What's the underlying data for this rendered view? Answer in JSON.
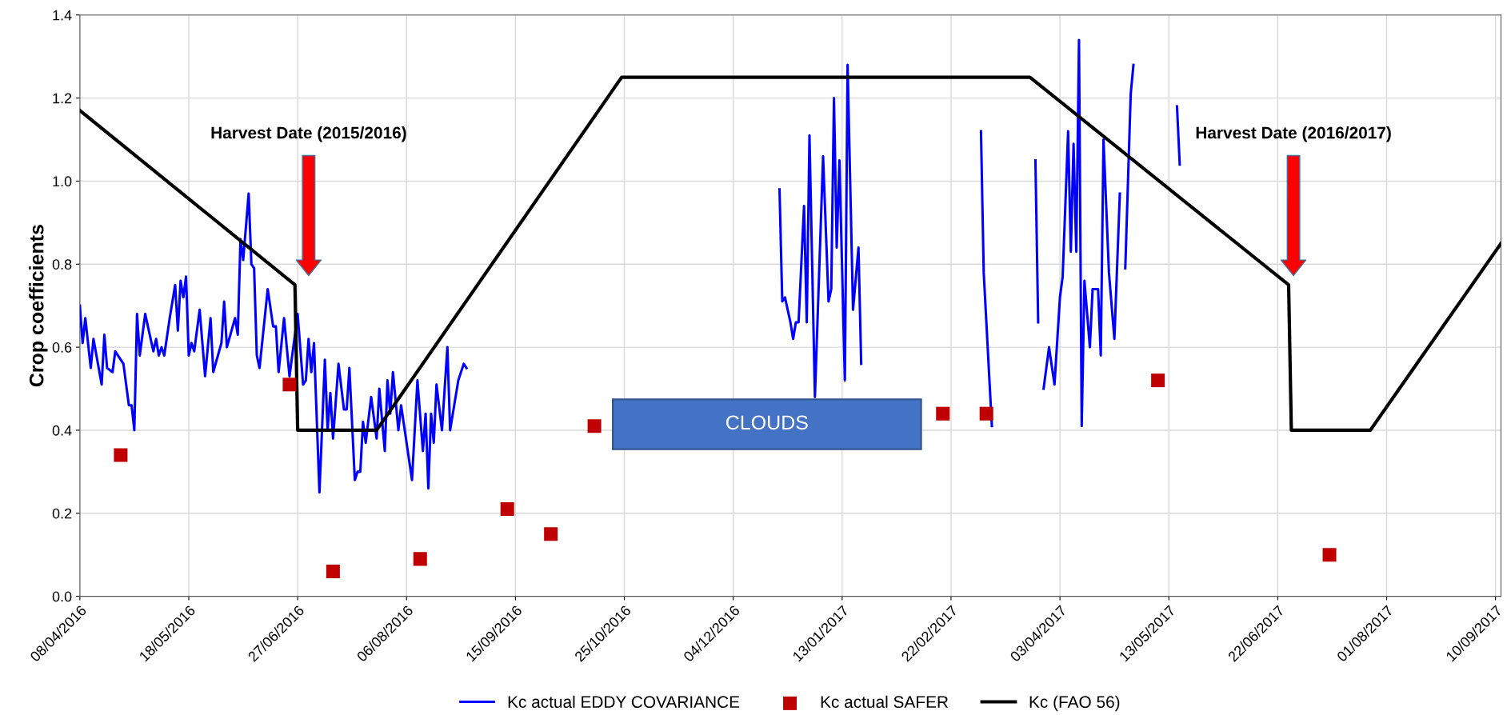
{
  "chart_data": {
    "type": "line",
    "ylabel": "Crop coefficients",
    "xlim": [
      "2016-04-08",
      "2017-09-12"
    ],
    "xticks": [
      {
        "value": "2016-04-08",
        "label": "08/04/2016"
      },
      {
        "value": "2016-05-18",
        "label": "18/05/2016"
      },
      {
        "value": "2016-06-27",
        "label": "27/06/2016"
      },
      {
        "value": "2016-08-06",
        "label": "06/08/2016"
      },
      {
        "value": "2016-09-15",
        "label": "15/09/2016"
      },
      {
        "value": "2016-10-25",
        "label": "25/10/2016"
      },
      {
        "value": "2016-12-04",
        "label": "04/12/2016"
      },
      {
        "value": "2017-01-13",
        "label": "13/01/2017"
      },
      {
        "value": "2017-02-22",
        "label": "22/02/2017"
      },
      {
        "value": "2017-04-03",
        "label": "03/04/2017"
      },
      {
        "value": "2017-05-13",
        "label": "13/05/2017"
      },
      {
        "value": "2017-06-22",
        "label": "22/06/2017"
      },
      {
        "value": "2017-08-01",
        "label": "01/08/2017"
      },
      {
        "value": "2017-09-10",
        "label": "10/09/2017"
      }
    ],
    "ylim": [
      0,
      1.4
    ],
    "yticks": [
      {
        "value": 0,
        "label": "0.0"
      },
      {
        "value": 0.2,
        "label": "0.2"
      },
      {
        "value": 0.4,
        "label": "0.4"
      },
      {
        "value": 0.6,
        "label": "0.6"
      },
      {
        "value": 0.8,
        "label": "0.8"
      },
      {
        "value": 1.0,
        "label": "1.0"
      },
      {
        "value": 1.2,
        "label": "1.2"
      },
      {
        "value": 1.4,
        "label": "1.4"
      }
    ],
    "grid": true,
    "legend": "bottom",
    "series": [
      {
        "name": "Kc actual EDDY COVARIANCE",
        "color": "#0000ff",
        "marker": "none",
        "x": [
          "2016-04-08",
          "2016-04-09",
          "2016-04-10",
          "2016-04-12",
          "2016-04-13",
          "2016-04-16",
          "2016-04-17",
          "2016-04-18",
          "2016-04-20",
          "2016-04-21",
          "2016-04-24",
          "2016-04-26",
          "2016-04-27",
          "2016-04-28",
          "2016-04-29",
          "2016-04-30",
          "2016-05-02",
          "2016-05-05",
          "2016-05-06",
          "2016-05-07",
          "2016-05-08",
          "2016-05-09",
          "2016-05-11",
          "2016-05-13",
          "2016-05-14",
          "2016-05-15",
          "2016-05-16",
          "2016-05-17",
          "2016-05-18",
          "2016-05-19",
          "2016-05-20",
          "2016-05-22",
          "2016-05-24",
          "2016-05-26",
          "2016-05-27",
          "2016-05-30",
          "2016-05-31",
          "2016-06-01",
          "2016-06-04",
          "2016-06-05",
          "2016-06-06",
          "2016-06-07",
          "2016-06-09",
          "2016-06-10",
          "2016-06-11",
          "2016-06-12",
          "2016-06-13",
          "2016-06-16",
          "2016-06-18",
          "2016-06-19",
          "2016-06-20",
          "2016-06-22",
          "2016-06-24",
          "2016-06-26",
          "2016-06-27",
          "2016-06-29",
          "2016-06-30",
          "2016-07-01",
          "2016-07-02",
          "2016-07-03",
          "2016-07-05",
          "2016-07-07",
          "2016-07-08",
          "2016-07-09",
          "2016-07-10",
          "2016-07-12",
          "2016-07-14",
          "2016-07-15",
          "2016-07-16",
          "2016-07-18",
          "2016-07-19",
          "2016-07-20",
          "2016-07-21",
          "2016-07-22",
          "2016-07-24",
          "2016-07-26",
          "2016-07-27",
          "2016-07-29",
          "2016-07-30",
          "2016-07-31",
          "2016-08-01",
          "2016-08-03",
          "2016-08-04",
          "2016-08-06",
          "2016-08-08",
          "2016-08-10",
          "2016-08-12",
          "2016-08-13",
          "2016-08-14",
          "2016-08-15",
          "2016-08-16",
          "2016-08-17",
          "2016-08-19",
          "2016-08-21",
          "2016-08-22",
          "2016-08-25",
          "2016-08-27",
          "2016-08-28",
          "2016-10-24",
          "2016-12-21",
          "2016-12-22",
          "2016-12-23",
          "2016-12-24",
          "2016-12-25",
          "2016-12-26",
          "2016-12-27",
          "2016-12-28",
          "2016-12-30",
          "2016-12-31",
          "2017-01-01",
          "2017-01-03",
          "2017-01-06",
          "2017-01-08",
          "2017-01-09",
          "2017-01-10",
          "2017-01-11",
          "2017-01-12",
          "2017-01-14",
          "2017-01-15",
          "2017-01-17",
          "2017-01-19",
          "2017-01-20",
          "2017-02-12",
          "2017-03-05",
          "2017-03-06",
          "2017-03-09",
          "2017-03-17",
          "2017-03-25",
          "2017-03-26",
          "2017-03-27",
          "2017-03-28",
          "2017-03-30",
          "2017-04-01",
          "2017-04-03",
          "2017-04-04",
          "2017-04-06",
          "2017-04-07",
          "2017-04-08",
          "2017-04-09",
          "2017-04-10",
          "2017-04-11",
          "2017-04-12",
          "2017-04-14",
          "2017-04-15",
          "2017-04-17",
          "2017-04-18",
          "2017-04-19",
          "2017-04-21",
          "2017-04-23",
          "2017-04-25",
          "2017-04-26",
          "2017-04-27",
          "2017-04-29",
          "2017-04-30",
          "2017-05-08",
          "2017-05-16",
          "2017-05-17"
        ],
        "values": [
          0.7,
          0.61,
          0.67,
          0.55,
          0.62,
          0.51,
          0.63,
          0.55,
          0.54,
          0.59,
          0.56,
          0.46,
          0.46,
          0.4,
          0.68,
          0.58,
          0.68,
          0.59,
          0.62,
          0.58,
          0.6,
          0.58,
          0.67,
          0.75,
          0.64,
          0.76,
          0.72,
          0.77,
          0.58,
          0.61,
          0.59,
          0.69,
          0.53,
          0.67,
          0.54,
          0.61,
          0.71,
          0.6,
          0.67,
          0.63,
          0.86,
          0.81,
          0.97,
          0.8,
          0.79,
          0.58,
          0.55,
          0.74,
          0.65,
          0.65,
          0.54,
          0.67,
          0.53,
          0.63,
          0.68,
          0.51,
          0.52,
          0.62,
          0.54,
          0.61,
          0.25,
          0.57,
          0.4,
          0.49,
          0.38,
          0.56,
          0.45,
          0.45,
          0.55,
          0.28,
          0.3,
          0.3,
          0.42,
          0.37,
          0.48,
          0.38,
          0.5,
          0.35,
          0.52,
          0.44,
          0.54,
          0.4,
          0.46,
          0.37,
          0.28,
          0.52,
          0.35,
          0.44,
          0.26,
          0.44,
          0.37,
          0.51,
          0.4,
          0.6,
          0.4,
          0.52,
          0.56,
          0.55,
          null,
          0.98,
          0.71,
          0.72,
          0.69,
          0.66,
          0.62,
          0.66,
          0.66,
          0.94,
          0.66,
          1.11,
          0.48,
          1.06,
          0.71,
          0.74,
          1.2,
          0.84,
          1.05,
          0.52,
          1.28,
          0.69,
          0.84,
          0.56,
          null,
          1.12,
          0.78,
          0.41,
          null,
          1.05,
          0.66,
          null,
          0.5,
          0.6,
          0.51,
          0.72,
          0.77,
          1.12,
          0.83,
          1.09,
          0.83,
          1.34,
          0.41,
          0.76,
          0.6,
          0.74,
          0.74,
          0.58,
          1.1,
          0.78,
          0.62,
          0.97,
          null,
          0.79,
          1.21,
          1.28,
          null,
          1.18,
          1.04
        ]
      },
      {
        "name": "Kc actual SAFER",
        "type": "scatter",
        "color": "#c00000",
        "marker": "square",
        "x": [
          "2016-04-23",
          "2016-06-24",
          "2016-07-10",
          "2016-08-11",
          "2016-09-12",
          "2016-09-28",
          "2016-10-14",
          "2017-02-19",
          "2017-03-07",
          "2017-05-09",
          "2017-07-11"
        ],
        "values": [
          0.34,
          0.51,
          0.06,
          0.09,
          0.21,
          0.15,
          0.41,
          0.44,
          0.44,
          0.52,
          0.1
        ]
      },
      {
        "name": "Kc (FAO 56)",
        "color": "#000000",
        "marker": "none",
        "x": [
          "2016-04-08",
          "2016-06-26",
          "2016-06-27",
          "2016-07-26",
          "2016-10-24",
          "2017-03-23",
          "2017-06-26",
          "2017-06-27",
          "2017-07-26",
          "2017-09-12"
        ],
        "values": [
          1.17,
          0.75,
          0.4,
          0.4,
          1.25,
          1.25,
          0.75,
          0.4,
          0.4,
          0.85
        ]
      }
    ],
    "annotations": [
      "Harvest Date (2015/2016)",
      "Harvest Date (2016/2017)",
      "CLOUDS"
    ]
  }
}
